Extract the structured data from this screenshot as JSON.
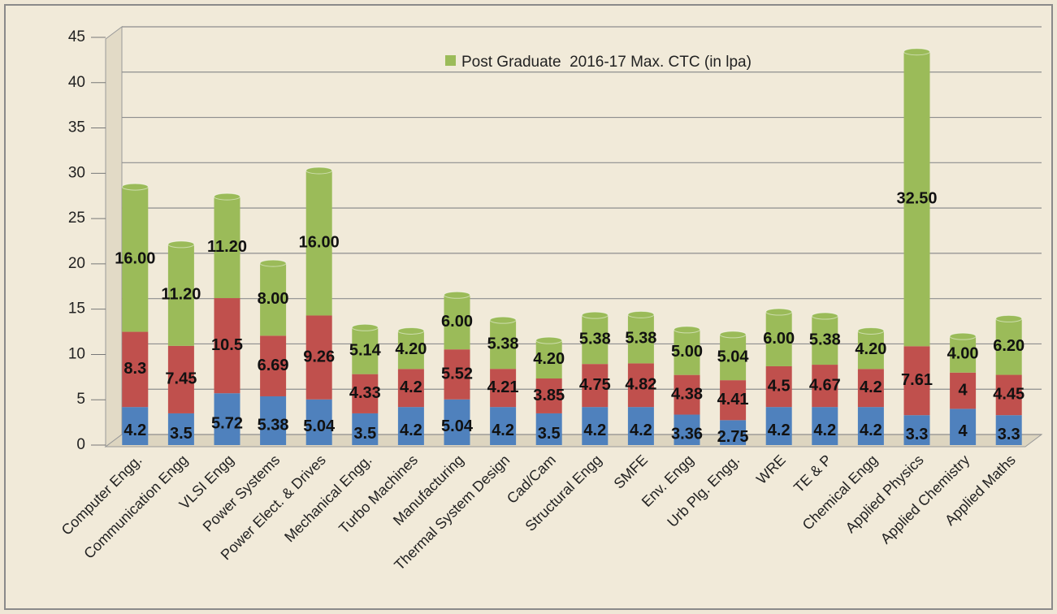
{
  "chart_data": {
    "type": "stacked-bar",
    "categories": [
      "Computer Engg.",
      "Communication Engg",
      "VLSI Engg",
      "Power Systems",
      "Power Elect. & Drives",
      "Mechanical Engg.",
      "Turbo Machines",
      "Manufacturing",
      "Thermal System Design",
      "Cad/Cam",
      "Structural Engg",
      "SMFE",
      "Env. Engg",
      "Urb Plg. Engg.",
      "WRE",
      "TE & P",
      "Chemical Engg",
      "Applied Physics",
      "Applied Chemistry",
      "Applied Maths"
    ],
    "series": [
      {
        "color": "#4f81bd",
        "values": [
          4.2,
          3.5,
          5.72,
          5.38,
          5.04,
          3.5,
          4.2,
          5.04,
          4.2,
          3.5,
          4.2,
          4.2,
          3.36,
          2.75,
          4.2,
          4.2,
          4.2,
          3.3,
          4,
          3.3
        ]
      },
      {
        "color": "#c0504d",
        "values": [
          8.3,
          7.45,
          10.5,
          6.69,
          9.26,
          4.33,
          4.2,
          5.52,
          4.21,
          3.85,
          4.75,
          4.82,
          4.38,
          4.41,
          4.5,
          4.67,
          4.2,
          7.61,
          4,
          4.45
        ]
      },
      {
        "name": "Post Graduate  2016-17 Max. CTC (in lpa)",
        "color": "#9bbb59",
        "values": [
          16,
          11.2,
          11.2,
          8,
          16,
          5.14,
          4.2,
          6,
          5.38,
          4.2,
          5.38,
          5.38,
          5,
          5.04,
          6,
          5.38,
          4.2,
          32.5,
          4,
          6.2
        ],
        "value_labels": [
          "16.00",
          "11.20",
          "11.20",
          "8.00",
          "16.00",
          "5.14",
          "4.20",
          "6.00",
          "5.38",
          "4.20",
          "5.38",
          "5.38",
          "5.00",
          "5.04",
          "6.00",
          "5.38",
          "4.20",
          "32.50",
          "4.00",
          "6.20"
        ]
      }
    ],
    "ylim": [
      0,
      45
    ],
    "yticks": [
      0,
      5,
      10,
      15,
      20,
      25,
      30,
      35,
      40,
      45
    ],
    "grid": true,
    "legend": "top"
  }
}
